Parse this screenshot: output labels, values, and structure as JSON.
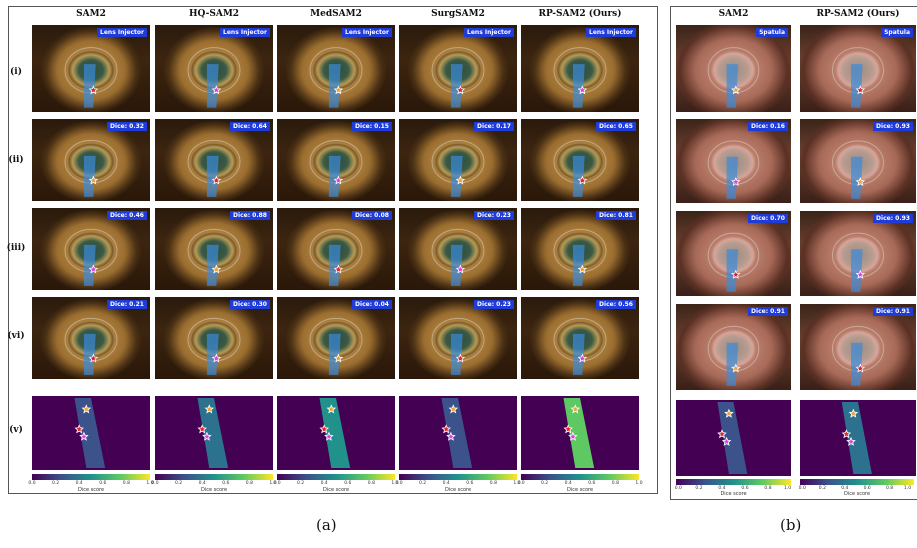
{
  "figure_a": {
    "columns": [
      "SAM2",
      "HQ-SAM2",
      "MedSAM2",
      "SurgSAM2",
      "RP-SAM2 (Ours)"
    ],
    "rows": [
      "(i)",
      "(ii)",
      "(iii)",
      "(vi)",
      "(v)"
    ],
    "tool_label": "Lens Injector",
    "dice": [
      [
        "Dice: 0.32",
        "Dice: 0.64",
        "Dice: 0.15",
        "Dice: 0.17",
        "Dice: 0.65"
      ],
      [
        "Dice: 0.46",
        "Dice: 0.88",
        "Dice: 0.08",
        "Dice: 0.23",
        "Dice: 0.81"
      ],
      [
        "Dice: 0.21",
        "Dice: 0.30",
        "Dice: 0.04",
        "Dice: 0.23",
        "Dice: 0.56"
      ]
    ],
    "colorbar_ticks": [
      "0.0",
      "0.2",
      "0.4",
      "0.6",
      "0.8",
      "1.0"
    ],
    "colorbar_label": "Dice score",
    "caption": "(a)"
  },
  "figure_b": {
    "columns": [
      "SAM2",
      "RP-SAM2 (Ours)"
    ],
    "tool_label": "Spatula",
    "dice": [
      [
        "Dice: 0.16",
        "Dice: 0.93"
      ],
      [
        "Dice: 0.70",
        "Dice: 0.93"
      ],
      [
        "Dice: 0.91",
        "Dice: 0.91"
      ]
    ],
    "colorbar_ticks": [
      "0.0",
      "0.2",
      "0.4",
      "0.6",
      "0.8",
      "1.0"
    ],
    "colorbar_label": "Dice score",
    "caption": "(b)"
  },
  "colors": {
    "tag_bg": "#1f3bd8",
    "mask_blue": "#3c8cdc",
    "star_red": "#e0202a",
    "star_orange": "#f0a030",
    "star_magenta": "#e040e0",
    "heat_bg": "#440154"
  }
}
